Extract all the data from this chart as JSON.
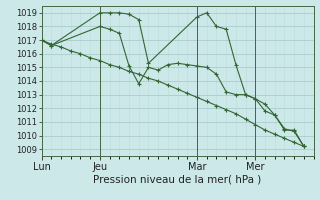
{
  "bg_color": "#cce8e8",
  "grid_major_color": "#aacccc",
  "grid_minor_color": "#bbdddd",
  "line_color": "#336633",
  "marker": "+",
  "marker_size": 3,
  "line_width": 0.8,
  "xlabel": "Pression niveau de la mer( hPa )",
  "xlabel_fontsize": 7.5,
  "ylim": [
    1008.5,
    1019.5
  ],
  "yticks": [
    1009,
    1010,
    1011,
    1012,
    1013,
    1014,
    1015,
    1016,
    1017,
    1018,
    1019
  ],
  "ytick_fontsize": 6,
  "xtick_fontsize": 7,
  "xtick_labels": [
    "Lun",
    "Jeu",
    "Mar",
    "Mer"
  ],
  "xtick_positions": [
    0,
    6,
    16,
    22
  ],
  "xlim": [
    0,
    28
  ],
  "vline_positions": [
    6,
    16,
    22
  ],
  "series1_x": [
    0,
    1,
    6,
    7,
    8,
    9,
    10,
    11,
    16,
    17,
    18,
    19,
    20,
    21,
    22,
    23,
    24,
    25,
    26,
    27
  ],
  "series1_y": [
    1017.0,
    1016.6,
    1019.0,
    1019.0,
    1019.0,
    1018.9,
    1018.5,
    1015.3,
    1018.7,
    1019.0,
    1018.0,
    1017.8,
    1015.2,
    1013.0,
    1012.7,
    1012.3,
    1011.5,
    1010.4,
    1010.4,
    1009.2
  ],
  "series2_x": [
    0,
    1,
    6,
    7,
    8,
    9,
    10,
    11,
    12,
    13,
    14,
    15,
    16,
    17,
    18,
    19,
    20,
    21,
    22,
    23,
    24,
    25,
    26,
    27
  ],
  "series2_y": [
    1017.0,
    1016.6,
    1018.0,
    1017.8,
    1017.5,
    1015.1,
    1013.8,
    1015.0,
    1014.8,
    1015.2,
    1015.3,
    1015.2,
    1015.1,
    1015.0,
    1014.5,
    1013.2,
    1013.0,
    1013.0,
    1012.7,
    1011.8,
    1011.5,
    1010.5,
    1010.3,
    1009.2
  ],
  "series3_x": [
    0,
    1,
    2,
    3,
    4,
    5,
    6,
    7,
    8,
    9,
    10,
    11,
    12,
    13,
    14,
    15,
    16,
    17,
    18,
    19,
    20,
    21,
    22,
    23,
    24,
    25,
    26,
    27
  ],
  "series3_y": [
    1017.0,
    1016.7,
    1016.5,
    1016.2,
    1016.0,
    1015.7,
    1015.5,
    1015.2,
    1015.0,
    1014.7,
    1014.5,
    1014.2,
    1014.0,
    1013.7,
    1013.4,
    1013.1,
    1012.8,
    1012.5,
    1012.2,
    1011.9,
    1011.6,
    1011.2,
    1010.8,
    1010.4,
    1010.1,
    1009.8,
    1009.5,
    1009.2
  ]
}
